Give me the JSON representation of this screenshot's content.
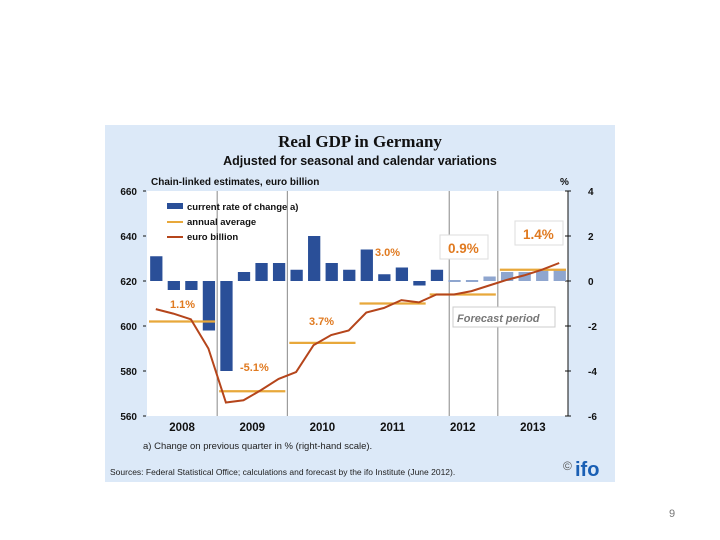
{
  "page": {
    "number": "9"
  },
  "chart_data": {
    "type": "bar",
    "title": "Real GDP in Germany",
    "subtitle": "Adjusted for seasonal and calendar variations",
    "left_axis_label": "Chain-linked estimates, euro billion",
    "right_axis_label": "%",
    "left_ylim": [
      560,
      660
    ],
    "left_ticks": [
      "660",
      "640",
      "620",
      "600",
      "580",
      "560"
    ],
    "left_tick_values": [
      660,
      640,
      620,
      600,
      580,
      560
    ],
    "right_ylim": [
      -6,
      4
    ],
    "right_ticks": [
      "4",
      "2",
      "0",
      "-2",
      "-4",
      "-6"
    ],
    "right_tick_values": [
      4,
      2,
      0,
      -2,
      -4,
      -6
    ],
    "years": [
      "2008",
      "2009",
      "2010",
      "2011",
      "2012",
      "2013"
    ],
    "quarters": [
      "2008Q1",
      "2008Q2",
      "2008Q3",
      "2008Q4",
      "2009Q1",
      "2009Q2",
      "2009Q3",
      "2009Q4",
      "2010Q1",
      "2010Q2",
      "2010Q3",
      "2010Q4",
      "2011Q1",
      "2011Q2",
      "2011Q3",
      "2011Q4",
      "2012Q1",
      "2012Q2",
      "2012Q3",
      "2012Q4",
      "2013Q1",
      "2013Q2",
      "2013Q3",
      "2013Q4"
    ],
    "forecast_start_index": 17,
    "legend": {
      "placement": "top-left",
      "items": [
        {
          "label": "current rate of change a)",
          "type": "bar",
          "color": "#2a4f98"
        },
        {
          "label": "annual average",
          "type": "line",
          "color": "#e8a83a"
        },
        {
          "label": "euro billion",
          "type": "line",
          "color": "#b5451b"
        }
      ]
    },
    "series": [
      {
        "name": "current rate of change a)",
        "axis": "right",
        "type": "bar",
        "values": [
          1.1,
          -0.4,
          -0.4,
          -2.2,
          -4.0,
          0.4,
          0.8,
          0.8,
          0.5,
          2.0,
          0.8,
          0.5,
          1.4,
          0.3,
          0.6,
          -0.2,
          0.5,
          0.0,
          0.0,
          0.2,
          0.4,
          0.4,
          0.5,
          0.5
        ]
      },
      {
        "name": "euro billion",
        "axis": "left",
        "type": "line",
        "values": [
          607.5,
          605.5,
          603,
          590,
          566,
          567,
          571.5,
          576.5,
          579.5,
          591.5,
          596,
          598,
          606,
          608,
          611.5,
          610.5,
          614,
          614,
          615.5,
          618,
          620.5,
          622.5,
          625,
          628
        ]
      },
      {
        "name": "annual average",
        "axis": "left",
        "type": "step",
        "values": [
          602,
          571,
          592.5,
          610,
          614,
          625
        ]
      }
    ],
    "annotations": [
      {
        "text": "1.1%",
        "year": "2008",
        "style": "normal"
      },
      {
        "text": "-5.1%",
        "year": "2009",
        "style": "normal"
      },
      {
        "text": "3.7%",
        "year": "2010",
        "style": "normal"
      },
      {
        "text": "3.0%",
        "year": "2011",
        "style": "normal"
      },
      {
        "text": "0.9%",
        "year": "2012",
        "style": "boxed"
      },
      {
        "text": "1.4%",
        "year": "2013",
        "style": "boxed"
      }
    ],
    "forecast_label": "Forecast period",
    "footnote": "a) Change on previous quarter in % (right-hand scale).",
    "source": "Sources: Federal Statistical Office; calculations and forecast by the ifo Institute (June 2012).",
    "logo": "ifo",
    "copyright_symbol": "©",
    "colors": {
      "bar": "#2a4f98",
      "bar_forecast": "#8fa6cf",
      "gdp_line": "#b5451b",
      "annual_avg": "#e8a83a",
      "annotation": "#e07a20",
      "panel_bg": "#dce9f8"
    }
  }
}
